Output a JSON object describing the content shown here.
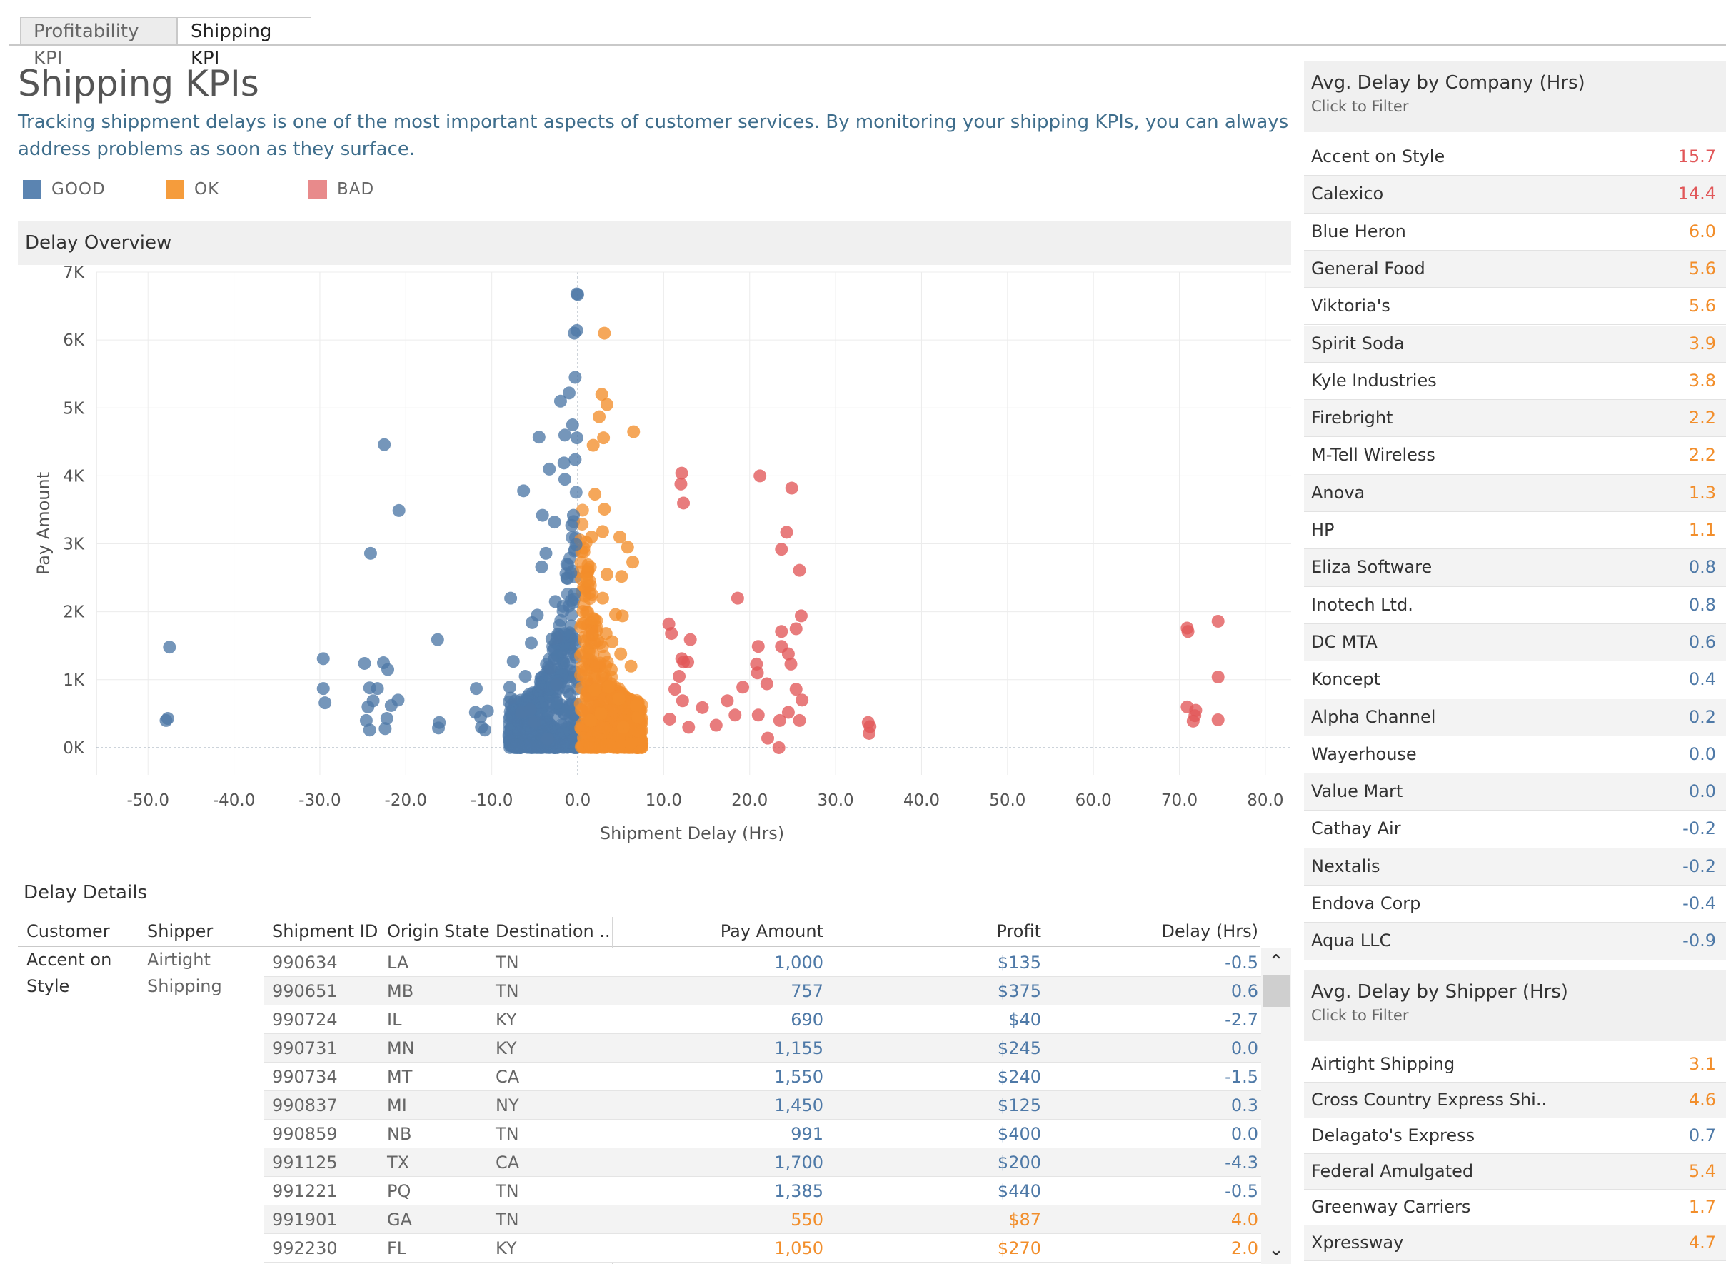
{
  "tabs": [
    {
      "label": "Profitability KPI",
      "active": false
    },
    {
      "label": "Shipping KPI",
      "active": true
    }
  ],
  "header": {
    "title": "Shipping KPIs",
    "subtitle": "Tracking shippment delays is one of the most important aspects of customer services. By monitoring your shipping KPIs, you can always address problems as soon as they surface."
  },
  "legend": [
    {
      "label": "GOOD",
      "color": "#5b84b1"
    },
    {
      "label": "OK",
      "color": "#f59c3c"
    },
    {
      "label": "BAD",
      "color": "#e15759"
    }
  ],
  "colors": {
    "good": "#4e79a7",
    "ok": "#f28e2b",
    "bad": "#e15759"
  },
  "delay_overview": {
    "title": "Delay Overview",
    "chart_data": {
      "type": "scatter",
      "xlabel": "Shipment Delay (Hrs)",
      "ylabel": "Pay Amount",
      "xlim": [
        -56,
        83
      ],
      "ylim": [
        -400,
        7000
      ],
      "x_ticks": [
        "-50.0",
        "-40.0",
        "-30.0",
        "-20.0",
        "-10.0",
        "0.0",
        "10.0",
        "20.0",
        "30.0",
        "40.0",
        "50.0",
        "60.0",
        "70.0",
        "80.0"
      ],
      "y_ticks": [
        "0K",
        "1K",
        "2K",
        "3K",
        "4K",
        "5K",
        "6K",
        "7K"
      ],
      "grid": true,
      "color_rule": "GOOD when delay <= 0, OK when delay between 0 and 10, BAD when delay >= 10",
      "series": [
        {
          "name": "GOOD",
          "points": [
            [
              -47.5,
              1480
            ],
            [
              -47.7,
              430
            ],
            [
              -47.9,
              400
            ],
            [
              -29.6,
              1310
            ],
            [
              -29.6,
              870
            ],
            [
              -29.4,
              660
            ],
            [
              -24.8,
              1240
            ],
            [
              -24.2,
              880
            ],
            [
              -24.4,
              600
            ],
            [
              -24.6,
              400
            ],
            [
              -24.2,
              260
            ],
            [
              -23.8,
              690
            ],
            [
              -22.6,
              1250
            ],
            [
              -22.1,
              1150
            ],
            [
              -22.2,
              430
            ],
            [
              -22.4,
              280
            ],
            [
              -21.7,
              620
            ],
            [
              -20.9,
              700
            ],
            [
              -23.3,
              870
            ],
            [
              -24.1,
              2860
            ],
            [
              -22.5,
              4460
            ],
            [
              -20.8,
              3490
            ],
            [
              -16.3,
              1590
            ],
            [
              -16.1,
              370
            ],
            [
              -16.2,
              290
            ],
            [
              -11.8,
              870
            ],
            [
              -11.9,
              520
            ],
            [
              -11.3,
              450
            ],
            [
              -11.2,
              300
            ],
            [
              -10.5,
              540
            ],
            [
              -10.8,
              260
            ],
            [
              -7.9,
              890
            ],
            [
              -7.8,
              730
            ],
            [
              -7.5,
              1270
            ],
            [
              -7.8,
              2200
            ],
            [
              -6.3,
              3780
            ],
            [
              -6.1,
              1050
            ],
            [
              -4.5,
              4570
            ],
            [
              -4.1,
              3420
            ],
            [
              -3.7,
              2860
            ],
            [
              -4.2,
              2660
            ],
            [
              -5.4,
              1540
            ],
            [
              -5.3,
              1840
            ],
            [
              -3.3,
              4100
            ],
            [
              -3.0,
              1600
            ],
            [
              -4.7,
              1950
            ],
            [
              -2.7,
              3320
            ],
            [
              -2.6,
              2150
            ],
            [
              -2.4,
              1620
            ],
            [
              -1.6,
              4190
            ],
            [
              -1.5,
              3950
            ],
            [
              -2.0,
              5100
            ],
            [
              -1.0,
              5220
            ],
            [
              -0.3,
              5450
            ],
            [
              -0.1,
              6680
            ],
            [
              0.0,
              6670
            ],
            [
              -0.1,
              6140
            ],
            [
              -0.4,
              6100
            ],
            [
              -0.5,
              3420
            ],
            [
              -0.7,
              3270
            ],
            [
              -0.2,
              2990
            ],
            [
              -0.8,
              2570
            ],
            [
              -0.4,
              2260
            ],
            [
              -0.1,
              4560
            ],
            [
              -0.6,
              4750
            ],
            [
              -1.5,
              4600
            ],
            [
              -0.3,
              4240
            ],
            [
              -5.5,
              560
            ],
            [
              -5.0,
              380
            ],
            [
              -3.2,
              1170
            ],
            [
              -2.5,
              930
            ],
            [
              -1.2,
              2490
            ],
            [
              -6.5,
              520
            ],
            [
              -3.5,
              130
            ]
          ]
        },
        {
          "name": "OK",
          "points": [
            [
              3.1,
              6100
            ],
            [
              2.8,
              5200
            ],
            [
              3.4,
              5050
            ],
            [
              2.5,
              4870
            ],
            [
              6.5,
              4650
            ],
            [
              3.0,
              4560
            ],
            [
              1.8,
              4450
            ],
            [
              2.0,
              3730
            ],
            [
              3.1,
              3510
            ],
            [
              2.9,
              3180
            ],
            [
              1.6,
              3100
            ],
            [
              4.9,
              3100
            ],
            [
              5.8,
              2950
            ],
            [
              6.4,
              2730
            ],
            [
              1.2,
              2690
            ],
            [
              3.4,
              2550
            ],
            [
              5.1,
              2520
            ],
            [
              1.1,
              2470
            ],
            [
              2.9,
              2200
            ],
            [
              4.4,
              1960
            ],
            [
              5.2,
              1940
            ],
            [
              1.8,
              1900
            ],
            [
              3.3,
              1680
            ],
            [
              4.0,
              1560
            ],
            [
              5.0,
              1380
            ],
            [
              6.2,
              1200
            ],
            [
              3.6,
              900
            ],
            [
              2.0,
              850
            ],
            [
              4.8,
              720
            ],
            [
              6.8,
              620
            ],
            [
              2.7,
              500
            ],
            [
              1.5,
              400
            ],
            [
              5.3,
              300
            ],
            [
              7.0,
              450
            ],
            [
              3.9,
              1150
            ],
            [
              1.3,
              1400
            ]
          ]
        },
        {
          "name": "BAD",
          "points": [
            [
              12.1,
              4040
            ],
            [
              12.0,
              3880
            ],
            [
              12.3,
              3600
            ],
            [
              21.2,
              4000
            ],
            [
              24.9,
              3820
            ],
            [
              24.3,
              3170
            ],
            [
              23.7,
              2920
            ],
            [
              25.8,
              2610
            ],
            [
              18.6,
              2200
            ],
            [
              26.0,
              1940
            ],
            [
              25.4,
              1750
            ],
            [
              23.7,
              1710
            ],
            [
              10.6,
              1820
            ],
            [
              10.9,
              1680
            ],
            [
              13.1,
              1590
            ],
            [
              21.0,
              1490
            ],
            [
              24.5,
              1380
            ],
            [
              23.7,
              1490
            ],
            [
              24.8,
              1230
            ],
            [
              20.8,
              1230
            ],
            [
              20.9,
              1100
            ],
            [
              12.1,
              1310
            ],
            [
              12.3,
              1260
            ],
            [
              12.8,
              1260
            ],
            [
              11.8,
              1050
            ],
            [
              19.2,
              890
            ],
            [
              22.0,
              940
            ],
            [
              25.4,
              860
            ],
            [
              11.3,
              860
            ],
            [
              12.2,
              690
            ],
            [
              14.5,
              590
            ],
            [
              17.4,
              690
            ],
            [
              18.3,
              480
            ],
            [
              21.0,
              480
            ],
            [
              23.5,
              400
            ],
            [
              24.5,
              520
            ],
            [
              26.1,
              700
            ],
            [
              25.8,
              400
            ],
            [
              10.7,
              420
            ],
            [
              12.9,
              300
            ],
            [
              16.1,
              330
            ],
            [
              22.1,
              140
            ],
            [
              23.4,
              0
            ],
            [
              33.8,
              370
            ],
            [
              34.0,
              310
            ],
            [
              33.9,
              210
            ],
            [
              70.9,
              1760
            ],
            [
              71.0,
              1710
            ],
            [
              74.5,
              1860
            ],
            [
              74.5,
              1040
            ],
            [
              70.9,
              600
            ],
            [
              71.9,
              550
            ],
            [
              71.8,
              470
            ],
            [
              71.6,
              390
            ],
            [
              74.5,
              410
            ]
          ]
        }
      ]
    }
  },
  "delay_details": {
    "title": "Delay Details",
    "columns": [
      "Customer",
      "Shipper",
      "Shipment ID",
      "Origin State",
      "Destination ..",
      "Pay Amount",
      "Profit",
      "Delay (Hrs)"
    ],
    "group_customer_line1": "Accent on",
    "group_customer_line2": "Style",
    "group_shipper_line1": "Airtight",
    "group_shipper_line2": "Shipping",
    "rows": [
      {
        "id": "990634",
        "origin": "LA",
        "dest": "TN",
        "pay": "1,000",
        "profit": "$135",
        "delay": "-0.5",
        "status": "good"
      },
      {
        "id": "990651",
        "origin": "MB",
        "dest": "TN",
        "pay": "757",
        "profit": "$375",
        "delay": "0.6",
        "status": "good"
      },
      {
        "id": "990724",
        "origin": "IL",
        "dest": "KY",
        "pay": "690",
        "profit": "$40",
        "delay": "-2.7",
        "status": "good"
      },
      {
        "id": "990731",
        "origin": "MN",
        "dest": "KY",
        "pay": "1,155",
        "profit": "$245",
        "delay": "0.0",
        "status": "good"
      },
      {
        "id": "990734",
        "origin": "MT",
        "dest": "CA",
        "pay": "1,550",
        "profit": "$240",
        "delay": "-1.5",
        "status": "good"
      },
      {
        "id": "990837",
        "origin": "MI",
        "dest": "NY",
        "pay": "1,450",
        "profit": "$125",
        "delay": "0.3",
        "status": "good"
      },
      {
        "id": "990859",
        "origin": "NB",
        "dest": "TN",
        "pay": "991",
        "profit": "$400",
        "delay": "0.0",
        "status": "good"
      },
      {
        "id": "991125",
        "origin": "TX",
        "dest": "CA",
        "pay": "1,700",
        "profit": "$200",
        "delay": "-4.3",
        "status": "good"
      },
      {
        "id": "991221",
        "origin": "PQ",
        "dest": "TN",
        "pay": "1,385",
        "profit": "$440",
        "delay": "-0.5",
        "status": "good"
      },
      {
        "id": "991901",
        "origin": "GA",
        "dest": "TN",
        "pay": "550",
        "profit": "$87",
        "delay": "4.0",
        "status": "ok"
      },
      {
        "id": "992230",
        "origin": "FL",
        "dest": "KY",
        "pay": "1,050",
        "profit": "$270",
        "delay": "2.0",
        "status": "ok"
      }
    ],
    "scroll_up_glyph": "⌃",
    "scroll_down_glyph": "⌄"
  },
  "company_panel": {
    "title": "Avg. Delay by Company (Hrs)",
    "subtitle": "Click to Filter",
    "items": [
      {
        "name": "Accent on Style",
        "value": "15.7",
        "status": "bad"
      },
      {
        "name": "Calexico",
        "value": "14.4",
        "status": "bad"
      },
      {
        "name": "Blue Heron",
        "value": "6.0",
        "status": "ok"
      },
      {
        "name": "General Food",
        "value": "5.6",
        "status": "ok"
      },
      {
        "name": "Viktoria's",
        "value": "5.6",
        "status": "ok"
      },
      {
        "name": "Spirit Soda",
        "value": "3.9",
        "status": "ok"
      },
      {
        "name": "Kyle Industries",
        "value": "3.8",
        "status": "ok"
      },
      {
        "name": "Firebright",
        "value": "2.2",
        "status": "ok"
      },
      {
        "name": "M-Tell Wireless",
        "value": "2.2",
        "status": "ok"
      },
      {
        "name": "Anova",
        "value": "1.3",
        "status": "ok"
      },
      {
        "name": "HP",
        "value": "1.1",
        "status": "ok"
      },
      {
        "name": "Eliza Software",
        "value": "0.8",
        "status": "good"
      },
      {
        "name": "Inotech Ltd.",
        "value": "0.8",
        "status": "good"
      },
      {
        "name": "DC MTA",
        "value": "0.6",
        "status": "good"
      },
      {
        "name": "Koncept",
        "value": "0.4",
        "status": "good"
      },
      {
        "name": "Alpha Channel",
        "value": "0.2",
        "status": "good"
      },
      {
        "name": "Wayerhouse",
        "value": "0.0",
        "status": "good"
      },
      {
        "name": "Value Mart",
        "value": "0.0",
        "status": "good"
      },
      {
        "name": "Cathay Air",
        "value": "-0.2",
        "status": "good"
      },
      {
        "name": "Nextalis",
        "value": "-0.2",
        "status": "good"
      },
      {
        "name": "Endova Corp",
        "value": "-0.4",
        "status": "good"
      },
      {
        "name": "Aqua LLC",
        "value": "-0.9",
        "status": "good"
      }
    ]
  },
  "shipper_panel": {
    "title": "Avg. Delay by Shipper (Hrs)",
    "subtitle": "Click to Filter",
    "items": [
      {
        "name": "Airtight Shipping",
        "value": "3.1",
        "status": "ok"
      },
      {
        "name": "Cross Country Express Shi..",
        "value": "4.6",
        "status": "ok"
      },
      {
        "name": "Delagato's Express",
        "value": "0.7",
        "status": "good"
      },
      {
        "name": "Federal Amulgated",
        "value": "5.4",
        "status": "ok"
      },
      {
        "name": "Greenway Carriers",
        "value": "1.7",
        "status": "ok"
      },
      {
        "name": "Xpressway",
        "value": "4.7",
        "status": "ok"
      }
    ]
  }
}
